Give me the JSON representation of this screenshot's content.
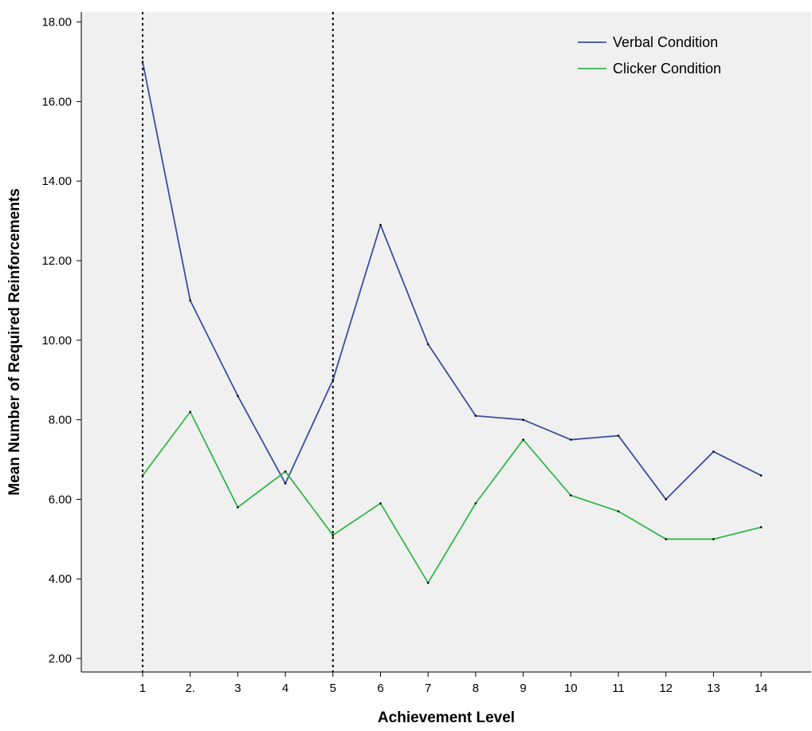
{
  "chart_data": {
    "type": "line",
    "title": "",
    "xlabel": "Achievement Level",
    "ylabel": "Mean Number of Required Reinforcements",
    "categories": [
      "1",
      "2.",
      "3",
      "4",
      "5",
      "6",
      "7",
      "8",
      "9",
      "10",
      "11",
      "12",
      "13",
      "14"
    ],
    "yticks": [
      "2.00",
      "4.00",
      "6.00",
      "8.00",
      "10.00",
      "12.00",
      "14.00",
      "16.00",
      "18.00"
    ],
    "ylim": [
      1.5,
      18.2
    ],
    "reference_lines_at_categories": [
      "1",
      "5"
    ],
    "legend_position": "top-right",
    "grid": false,
    "background_color": "#f0f0f0",
    "series": [
      {
        "name": "Verbal Condition",
        "color": "#3a4fa0",
        "values": [
          17.0,
          11.0,
          8.6,
          6.4,
          9.0,
          12.9,
          9.9,
          8.1,
          8.0,
          7.5,
          7.6,
          6.0,
          7.2,
          6.6
        ]
      },
      {
        "name": "Clicker Condition",
        "color": "#33b84a",
        "values": [
          6.6,
          8.2,
          5.8,
          6.7,
          5.1,
          5.9,
          3.9,
          5.9,
          7.5,
          6.1,
          5.7,
          5.0,
          5.0,
          5.3
        ]
      }
    ]
  }
}
